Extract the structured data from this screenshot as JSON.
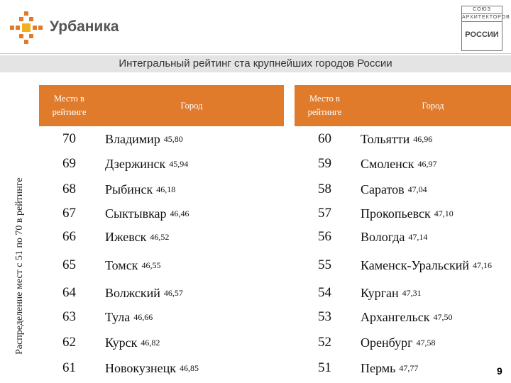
{
  "header": {
    "brand": "Урбаника",
    "partner_lines": [
      "СОЮЗ",
      "АРХИТЕКТОРОВ",
      "РОССИИ"
    ]
  },
  "title": "Интегральный рейтинг ста крупнейших городов России",
  "side_label": "Распределение мест с 51 по 70 в рейтинге",
  "tables": [
    {
      "header": [
        "Место в рейтинге",
        "Город"
      ],
      "rows": [
        [
          70,
          "Владимир",
          "45,80"
        ],
        [
          69,
          "Дзержинск",
          "45,94"
        ],
        [
          68,
          "Рыбинск",
          "46,18"
        ],
        [
          67,
          "Сыктывкар",
          "46,46"
        ],
        [
          66,
          "Ижевск",
          "46,52"
        ],
        [
          65,
          "Томск",
          "46,55"
        ],
        [
          64,
          "Волжский",
          "46,57"
        ],
        [
          63,
          "Тула",
          "46,66"
        ],
        [
          62,
          "Курск",
          "46,82"
        ],
        [
          61,
          "Новокузнецк",
          "46,85"
        ]
      ]
    },
    {
      "header": [
        "Место в рейтинге",
        "Город"
      ],
      "rows": [
        [
          60,
          "Тольятти",
          "46,96"
        ],
        [
          59,
          "Смоленск",
          "46,97"
        ],
        [
          58,
          "Саратов",
          "47,04"
        ],
        [
          57,
          "Прокопьевск",
          "47,10"
        ],
        [
          56,
          "Вологда",
          "47,14"
        ],
        [
          55,
          "Каменск-Уральский",
          "47,16"
        ],
        [
          54,
          "Курган",
          "47,31"
        ],
        [
          53,
          "Архангельск",
          "47,50"
        ],
        [
          52,
          "Оренбург",
          "47,58"
        ],
        [
          51,
          "Пермь",
          "47,77"
        ]
      ]
    }
  ],
  "page_number": 9
}
